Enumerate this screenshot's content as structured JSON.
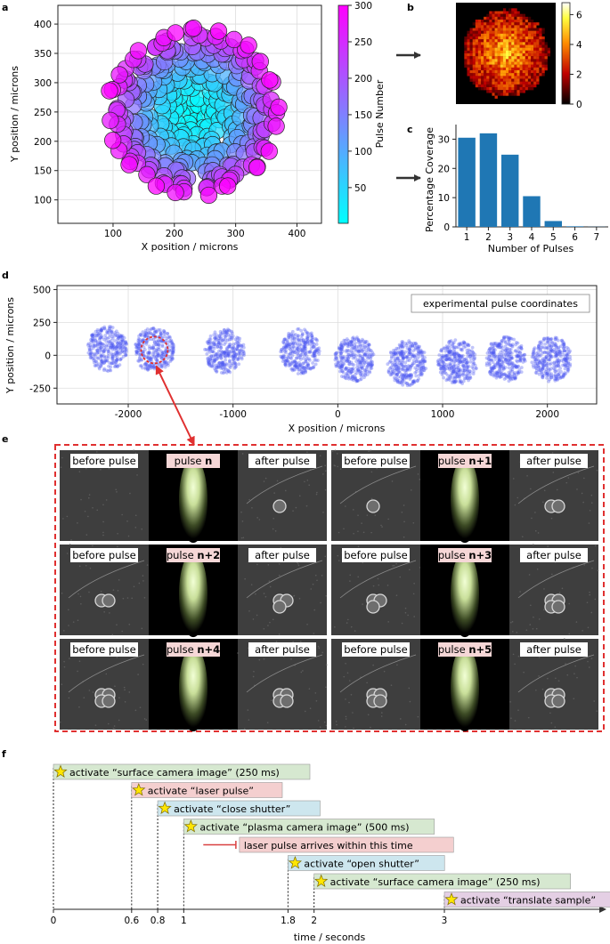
{
  "panels": {
    "a": {
      "letter": "a",
      "chart_data": {
        "type": "scatter",
        "title": "",
        "xlabel": "X position / microns",
        "ylabel": "Y position / microns",
        "xlim": [
          10,
          440
        ],
        "ylim": [
          60,
          432
        ],
        "xticks": [
          100,
          200,
          300,
          400
        ],
        "yticks": [
          100,
          150,
          200,
          250,
          300,
          350,
          400
        ],
        "colorbar": {
          "label": "Pulse Number",
          "min": 1,
          "max": 300,
          "ticks": [
            50,
            100,
            150,
            200,
            250,
            300
          ],
          "colormap": "cool"
        },
        "circle_diameter_microns": 27,
        "pulse_count": 300,
        "layout": "spiral"
      }
    },
    "b": {
      "letter": "b",
      "chart_data": {
        "type": "heatmap",
        "colorbar": {
          "min": 0,
          "max": 6.8,
          "ticks": [
            0,
            2,
            4,
            6
          ],
          "colormap": "hot"
        },
        "cells": 36
      }
    },
    "c": {
      "letter": "c",
      "chart_data": {
        "type": "bar",
        "categories": [
          "1",
          "2",
          "3",
          "4",
          "5",
          "6",
          "7"
        ],
        "values": [
          30.5,
          32,
          24.7,
          10.5,
          2,
          0.2,
          0.05
        ],
        "xlabel": "Number of Pulses",
        "ylabel": "Percentage Coverage",
        "ylim": [
          0,
          35
        ],
        "yticks": [
          0,
          10,
          20,
          30
        ],
        "color": "#1f77b4"
      }
    },
    "d": {
      "letter": "d",
      "chart_data": {
        "type": "scatter",
        "xlabel": "X position / microns",
        "ylabel": "Y position / microns",
        "xlim": [
          -2680,
          2470
        ],
        "ylim": [
          -370,
          530
        ],
        "xticks": [
          -2000,
          -1000,
          0,
          1000,
          2000
        ],
        "yticks": [
          -250,
          0,
          250,
          500
        ],
        "legend": "experimental pulse coordinates",
        "cluster_centers_x": [
          -2200,
          -1750,
          -1080,
          -360,
          160,
          660,
          1140,
          1600,
          2040
        ],
        "cluster_centers_y": [
          50,
          40,
          30,
          30,
          -30,
          -60,
          -50,
          -30,
          -30
        ],
        "cluster_radius_microns": 190,
        "points_per_cluster": 300,
        "highlight_cluster": 1,
        "marker_color": "#4a56f0"
      }
    },
    "e": {
      "letter": "e",
      "before_label": "before pulse",
      "after_label": "after pulse",
      "pulse_word": "pulse",
      "sequences": [
        {
          "n": "n"
        },
        {
          "n": "n+1"
        },
        {
          "n": "n+2"
        },
        {
          "n": "n+3"
        },
        {
          "n": "n+4"
        },
        {
          "n": "n+5"
        }
      ]
    },
    "f": {
      "letter": "f",
      "chart_data": {
        "type": "timeline",
        "xlabel": "time / seconds",
        "xticks": [
          0,
          0.6,
          0.8,
          1,
          1.8,
          2,
          3
        ],
        "xtick_labels": [
          "0",
          "0.6",
          "0.8",
          "1",
          "1.8",
          "2",
          "3"
        ],
        "xlim": [
          0,
          4.1
        ],
        "events": [
          {
            "t": 0,
            "label": "activate “surface camera image” (250 ms)",
            "color": "#d6e8d0"
          },
          {
            "t": 0.6,
            "label": "activate “laser pulse”",
            "color": "#f4cfcf"
          },
          {
            "t": 0.8,
            "label": "activate “close shutter”",
            "color": "#cde6ee"
          },
          {
            "t": 1,
            "label": "activate “plasma camera image” (500 ms)",
            "color": "#d6e8d0"
          },
          {
            "t": 1.8,
            "label": "activate “open shutter”",
            "color": "#cde6ee"
          },
          {
            "t": 2,
            "label": "activate “surface camera image” (250 ms)",
            "color": "#d6e8d0"
          },
          {
            "t": 3,
            "label": "activate “translate sample”",
            "color": "#e4cfe4"
          }
        ],
        "window": {
          "t0": 1.15,
          "t1": 1.4,
          "label": "laser pulse arrives within this time",
          "color": "#f4cfcf",
          "line_color": "#d94040"
        }
      }
    }
  }
}
